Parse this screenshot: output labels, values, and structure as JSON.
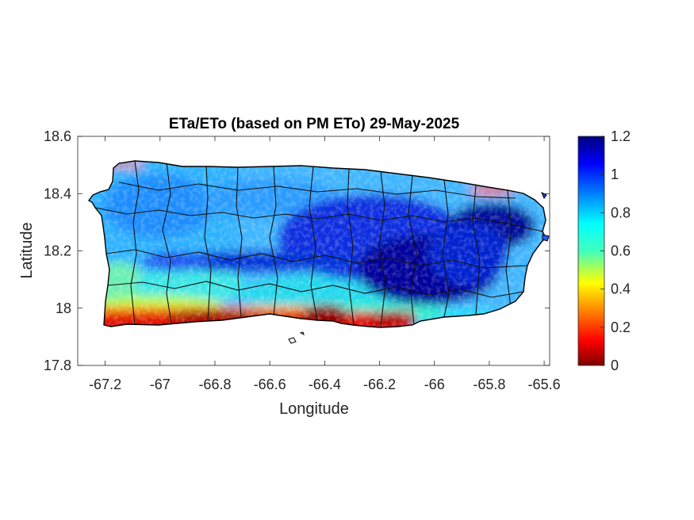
{
  "title": "ETa/ETo (based on PM ETo) 29-May-2025",
  "xlabel": "Longitude",
  "ylabel": "Latitude",
  "x_ticks": [
    "-67.2",
    "-67",
    "-66.8",
    "-66.6",
    "-66.4",
    "-66.2",
    "-66",
    "-65.8",
    "-65.6"
  ],
  "y_ticks": [
    "18.6",
    "18.4",
    "18.2",
    "18"
  ],
  "y_tick_bottom": "17.8",
  "colorbar_ticks": [
    "1.2",
    "1",
    "0.8",
    "0.6",
    "0.4",
    "0.2",
    "0"
  ],
  "chart_data": {
    "type": "heatmap",
    "title": "ETa/ETo (based on PM ETo) 29-May-2025",
    "xlabel": "Longitude",
    "ylabel": "Latitude",
    "xlim": [
      -67.3,
      -65.58
    ],
    "ylim": [
      17.8,
      18.6
    ],
    "x_tick_values": [
      -67.2,
      -67,
      -66.8,
      -66.6,
      -66.4,
      -66.2,
      -66,
      -65.8,
      -65.6
    ],
    "y_tick_values": [
      17.8,
      18,
      18.2,
      18.4,
      18.6
    ],
    "colorbar": {
      "colormap": "jet",
      "range": [
        0,
        1.2
      ],
      "ticks": [
        0,
        0.2,
        0.4,
        0.6,
        0.8,
        1,
        1.2
      ],
      "colors": [
        "#7f0000",
        "#ff0000",
        "#ffff00",
        "#00ffff",
        "#0000ff",
        "#00007f"
      ]
    },
    "pattern": {
      "south_coast_band": 0.1,
      "west_and_north": 0.75,
      "central_east": 1.1,
      "central_ridge": 1.05
    }
  }
}
